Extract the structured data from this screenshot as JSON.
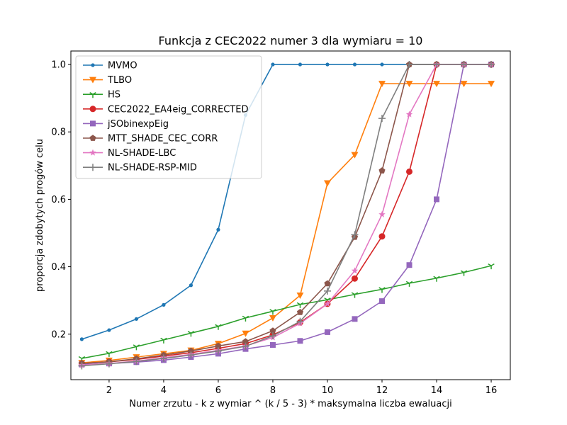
{
  "chart_data": {
    "type": "line",
    "title": "Funkcja z CEC2022 numer 3 dla wymiaru = 10",
    "xlabel": "Numer zrzutu - k z wymiar ^ (k / 5 - 3) * maksymalna liczba ewaluacji",
    "ylabel": "proporcja zdobytych progów celu",
    "xlim": [
      0.6,
      16.7
    ],
    "ylim": [
      0.065,
      1.04
    ],
    "xticks": [
      2,
      4,
      6,
      8,
      10,
      12,
      14,
      16
    ],
    "yticks": [
      0.2,
      0.4,
      0.6,
      0.8,
      1.0
    ],
    "ytick_labels": [
      "0.2",
      "0.4",
      "0.6",
      "0.8",
      "1.0"
    ],
    "grid": false,
    "legend_position": "upper-left",
    "x": [
      1,
      2,
      3,
      4,
      5,
      6,
      7,
      8,
      9,
      10,
      11,
      12,
      13,
      14,
      15,
      16
    ],
    "series": [
      {
        "name": "MVMO",
        "color": "#1f77b4",
        "marker": "point",
        "values": [
          0.185,
          0.212,
          0.245,
          0.287,
          0.345,
          0.51,
          0.85,
          1.0,
          1.0,
          1.0,
          1.0,
          1.0,
          1.0,
          1.0,
          1.0,
          1.0
        ]
      },
      {
        "name": "TLBO",
        "color": "#ff7f0e",
        "marker": "triangle-down",
        "values": [
          0.115,
          0.122,
          0.132,
          0.142,
          0.152,
          0.172,
          0.202,
          0.248,
          0.315,
          0.648,
          0.732,
          0.943,
          0.943,
          0.943,
          0.943,
          0.943
        ]
      },
      {
        "name": "HS",
        "color": "#2ca02c",
        "marker": "tri-down",
        "values": [
          0.128,
          0.143,
          0.163,
          0.183,
          0.203,
          0.223,
          0.248,
          0.268,
          0.288,
          0.302,
          0.318,
          0.333,
          0.351,
          0.366,
          0.383,
          0.403
        ]
      },
      {
        "name": "CEC2022_EA4eig_CORRECTED",
        "color": "#d62728",
        "marker": "circle",
        "values": [
          0.113,
          0.118,
          0.125,
          0.135,
          0.145,
          0.158,
          0.172,
          0.198,
          0.235,
          0.29,
          0.365,
          0.49,
          0.682,
          1.0,
          1.0,
          1.0
        ]
      },
      {
        "name": "jSObinexpEig",
        "color": "#9467bd",
        "marker": "square",
        "values": [
          0.11,
          0.113,
          0.117,
          0.123,
          0.132,
          0.142,
          0.156,
          0.168,
          0.18,
          0.206,
          0.245,
          0.298,
          0.405,
          0.6,
          1.0,
          1.0
        ]
      },
      {
        "name": "MTT_SHADE_CEC_CORR",
        "color": "#8c564b",
        "marker": "pentagon",
        "values": [
          0.113,
          0.118,
          0.127,
          0.138,
          0.15,
          0.165,
          0.178,
          0.21,
          0.265,
          0.35,
          0.488,
          0.685,
          1.0,
          1.0,
          1.0,
          1.0
        ]
      },
      {
        "name": "NL-SHADE-LBC",
        "color": "#e377c2",
        "marker": "star",
        "values": [
          0.108,
          0.113,
          0.12,
          0.13,
          0.14,
          0.152,
          0.165,
          0.19,
          0.232,
          0.29,
          0.388,
          0.555,
          0.852,
          1.0,
          1.0,
          1.0
        ]
      },
      {
        "name": "NL-SHADE-RSP-MID",
        "color": "#7f7f7f",
        "marker": "plus",
        "values": [
          0.106,
          0.112,
          0.119,
          0.128,
          0.138,
          0.15,
          0.164,
          0.195,
          0.238,
          0.328,
          0.495,
          0.84,
          1.0,
          1.0,
          1.0,
          1.0
        ]
      }
    ]
  }
}
